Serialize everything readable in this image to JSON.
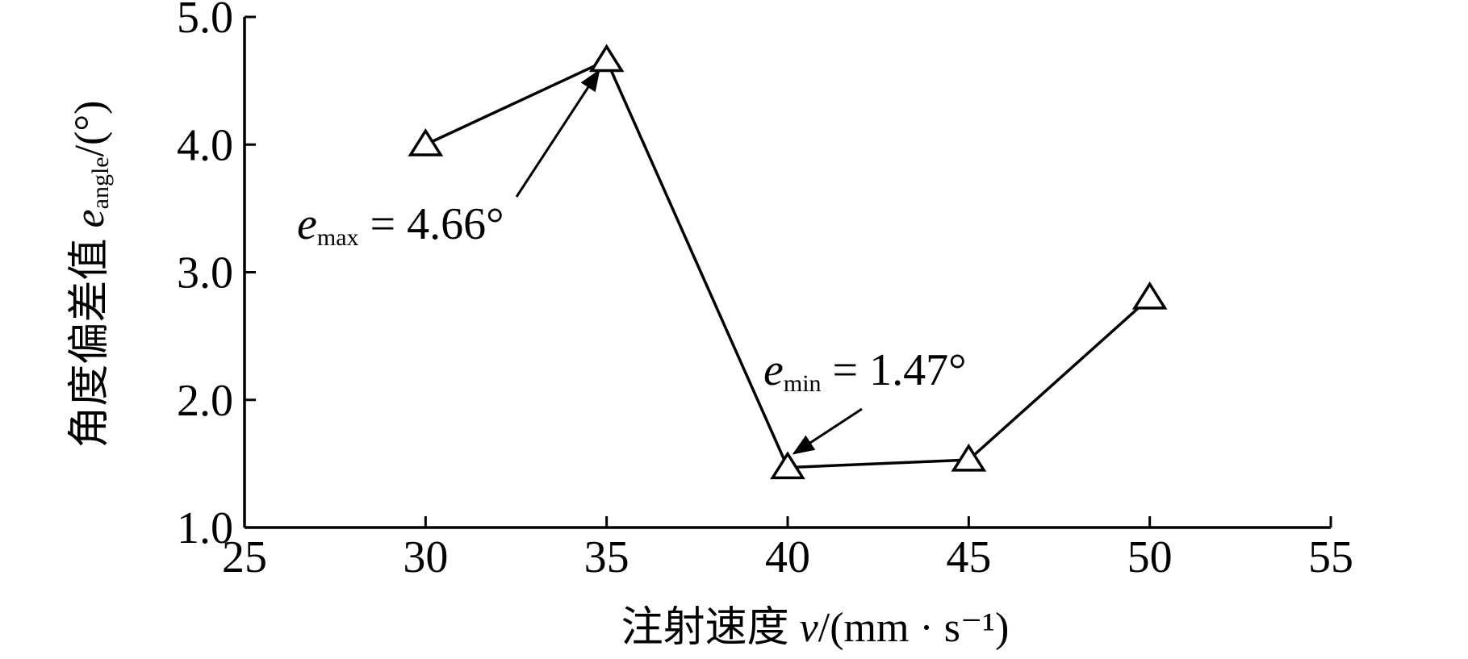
{
  "chart_data": {
    "type": "line",
    "x": [
      30,
      35,
      40,
      45,
      50
    ],
    "series": [
      {
        "color": "#000000",
        "marker": "triangle",
        "values": [
          4.0,
          4.66,
          1.47,
          1.53,
          2.8
        ]
      }
    ],
    "xlim": [
      25,
      55
    ],
    "xticks": [
      25,
      30,
      35,
      40,
      45,
      50,
      55
    ],
    "ylim": [
      1.0,
      5.0
    ],
    "yticks": [
      {
        "value": 1,
        "label": "1.0"
      },
      {
        "value": 2,
        "label": "2.0"
      },
      {
        "value": 3,
        "label": "3.0"
      },
      {
        "value": 4,
        "label": "4.0"
      },
      {
        "value": 5,
        "label": "5.0"
      }
    ],
    "x_label": {
      "text": "注射速度 ",
      "var": "v",
      "unit": "/(mm · s⁻¹)"
    },
    "y_label": {
      "text": "角度偏差值 ",
      "var": "e",
      "sub": "angle",
      "unit": "/(°)"
    },
    "annotations": [
      {
        "var": "e",
        "sub": "max",
        "text": " = 4.66°"
      },
      {
        "var": "e",
        "sub": "min",
        "text": " = 1.47°"
      }
    ],
    "grid": false
  }
}
